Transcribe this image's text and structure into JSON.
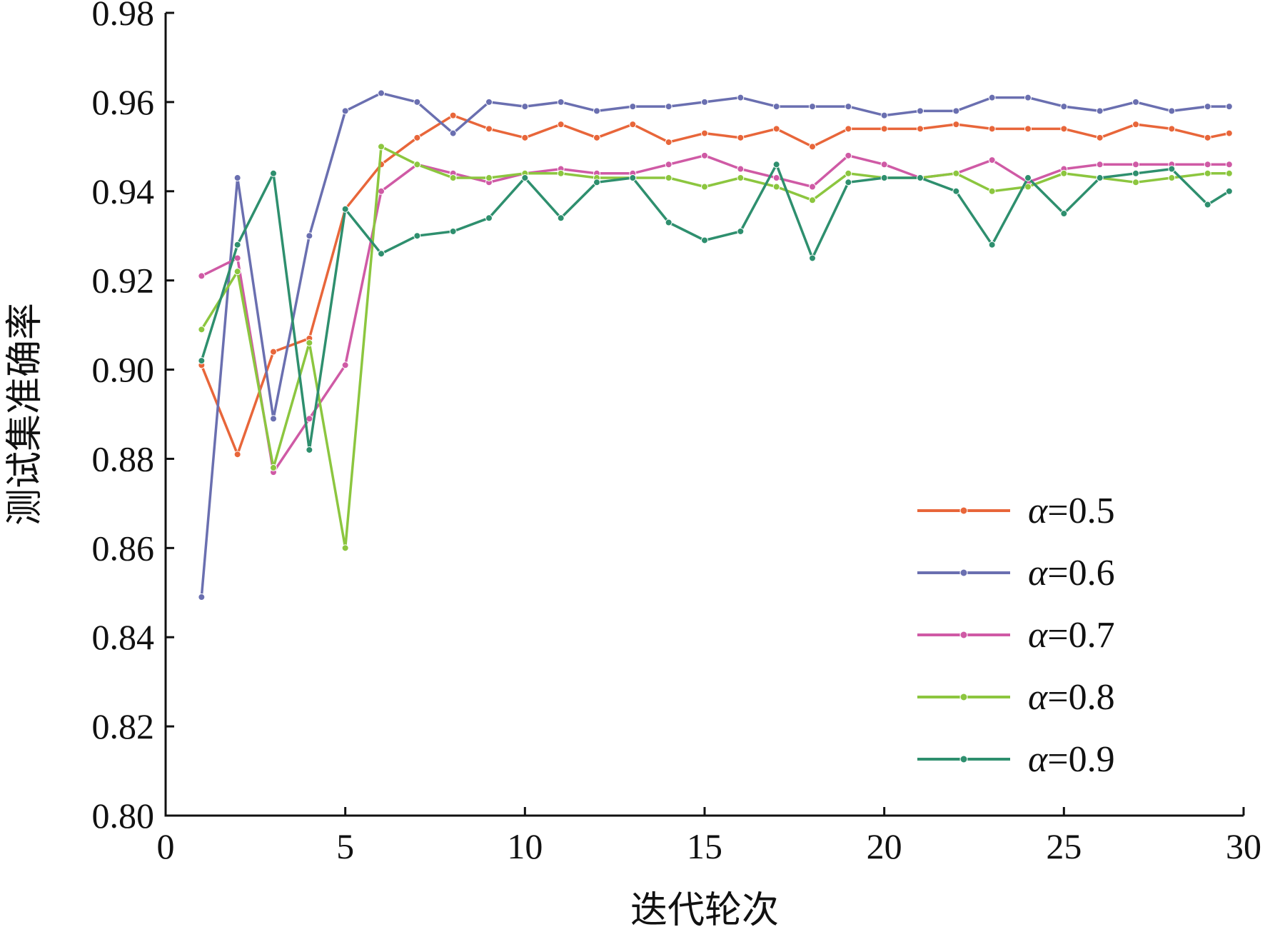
{
  "chart_data": {
    "type": "line",
    "xlabel": "迭代轮次",
    "ylabel": "测试集准确率",
    "xlim": [
      0,
      30
    ],
    "ylim": [
      0.8,
      0.98
    ],
    "xticks": [
      "0",
      "5",
      "10",
      "15",
      "20",
      "25",
      "30"
    ],
    "yticks": [
      "0.80",
      "0.82",
      "0.84",
      "0.86",
      "0.88",
      "0.90",
      "0.92",
      "0.94",
      "0.96",
      "0.98"
    ],
    "grid": false,
    "legend_position": "bottom-right",
    "legend_symbol": "α",
    "x": [
      1,
      2,
      3,
      4,
      5,
      6,
      7,
      8,
      9,
      10,
      11,
      12,
      13,
      14,
      15,
      16,
      17,
      18,
      19,
      20,
      21,
      22,
      23,
      24,
      25,
      26,
      27,
      28,
      29,
      29.6
    ],
    "series": [
      {
        "name": "=0.5",
        "color": "#e8663a",
        "values": [
          0.901,
          0.881,
          0.904,
          0.907,
          0.936,
          0.946,
          0.952,
          0.957,
          0.954,
          0.952,
          0.955,
          0.952,
          0.955,
          0.951,
          0.953,
          0.952,
          0.954,
          0.95,
          0.954,
          0.954,
          0.954,
          0.955,
          0.954,
          0.954,
          0.954,
          0.952,
          0.955,
          0.954,
          0.952,
          0.953
        ]
      },
      {
        "name": "=0.6",
        "color": "#6a6fb0",
        "values": [
          0.849,
          0.943,
          0.889,
          0.93,
          0.958,
          0.962,
          0.96,
          0.953,
          0.96,
          0.959,
          0.96,
          0.958,
          0.959,
          0.959,
          0.96,
          0.961,
          0.959,
          0.959,
          0.959,
          0.957,
          0.958,
          0.958,
          0.961,
          0.961,
          0.959,
          0.958,
          0.96,
          0.958,
          0.959,
          0.959
        ]
      },
      {
        "name": "=0.7",
        "color": "#cf5aa5",
        "values": [
          0.921,
          0.925,
          0.877,
          0.889,
          0.901,
          0.94,
          0.946,
          0.944,
          0.942,
          0.944,
          0.945,
          0.944,
          0.944,
          0.946,
          0.948,
          0.945,
          0.943,
          0.941,
          0.948,
          0.946,
          0.943,
          0.944,
          0.947,
          0.942,
          0.945,
          0.946,
          0.946,
          0.946,
          0.946,
          0.946
        ]
      },
      {
        "name": "=0.8",
        "color": "#8cc63f",
        "values": [
          0.909,
          0.922,
          0.878,
          0.906,
          0.86,
          0.95,
          0.946,
          0.943,
          0.943,
          0.944,
          0.944,
          0.943,
          0.943,
          0.943,
          0.941,
          0.943,
          0.941,
          0.938,
          0.944,
          0.943,
          0.943,
          0.944,
          0.94,
          0.941,
          0.944,
          0.943,
          0.942,
          0.943,
          0.944,
          0.944
        ]
      },
      {
        "name": "=0.9",
        "color": "#2e8f6e",
        "values": [
          0.902,
          0.928,
          0.944,
          0.882,
          0.936,
          0.926,
          0.93,
          0.931,
          0.934,
          0.943,
          0.934,
          0.942,
          0.943,
          0.933,
          0.929,
          0.931,
          0.946,
          0.925,
          0.942,
          0.943,
          0.943,
          0.94,
          0.928,
          0.943,
          0.935,
          0.943,
          0.944,
          0.945,
          0.937,
          0.94
        ]
      }
    ]
  }
}
